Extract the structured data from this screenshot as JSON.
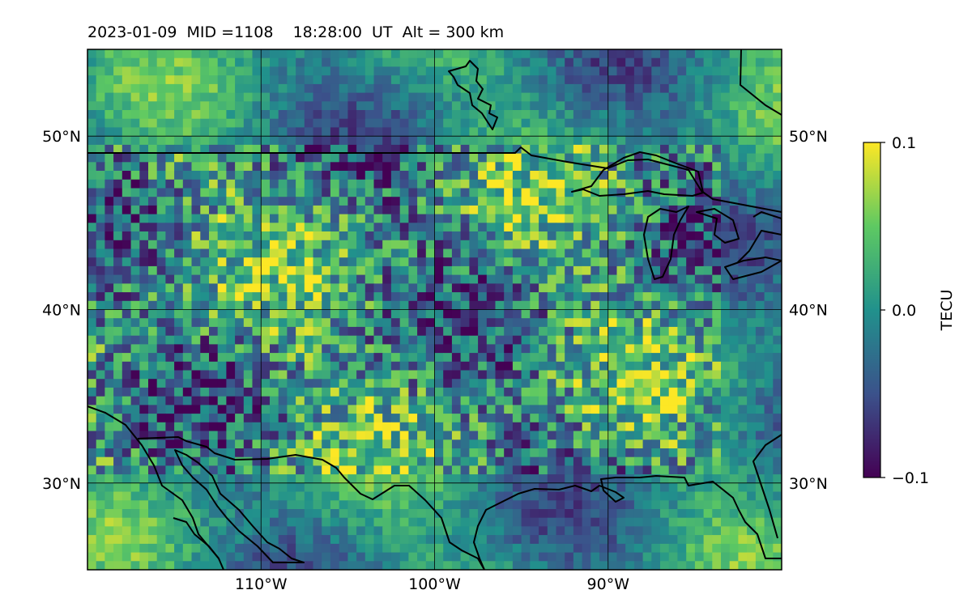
{
  "header": {
    "title": "2023-01-09  MID =1108    18:28:00  UT  Alt = 300 km"
  },
  "map": {
    "projection": "equirectangular",
    "lon_range": [
      -120,
      -80
    ],
    "lat_range": [
      25,
      55
    ],
    "lon_ticks": [
      {
        "lon": -110,
        "label": "110°W"
      },
      {
        "lon": -100,
        "label": "100°W"
      },
      {
        "lon": -90,
        "label": "90°W"
      }
    ],
    "lat_ticks": [
      {
        "lat": 50,
        "label": "50°N"
      },
      {
        "lat": 40,
        "label": "40°N"
      },
      {
        "lat": 30,
        "label": "30°N"
      }
    ],
    "grid": true,
    "cell_deg": 0.5,
    "colormap": "viridis",
    "coastline_color": "#000000"
  },
  "colorbar": {
    "label": "TECU",
    "ticks": [
      {
        "value": 0.1,
        "label": "0.1"
      },
      {
        "value": 0.0,
        "label": "0.0"
      },
      {
        "value": -0.1,
        "label": "−0.1"
      }
    ],
    "range": [
      -0.1,
      0.1
    ],
    "colors": [
      "#440154",
      "#3b528b",
      "#21918c",
      "#5ec962",
      "#fde725"
    ]
  }
}
